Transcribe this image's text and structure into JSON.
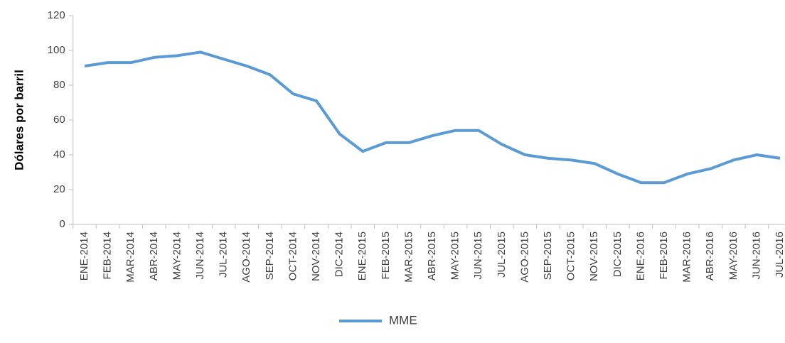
{
  "chart_data": {
    "type": "line",
    "y_label": "Dólares por barril",
    "categories": [
      "ENE-2014",
      "FEB-2014",
      "MAR-2014",
      "ABR-2014",
      "MAY-2014",
      "JUN-2014",
      "JUL-2014",
      "AGO-2014",
      "SEP-2014",
      "OCT-2014",
      "NOV-2014",
      "DIC-2014",
      "ENE-2015",
      "FEB-2015",
      "MAR-2015",
      "ABR-2015",
      "MAY-2015",
      "JUN-2015",
      "JUL-2015",
      "AGO-2015",
      "SEP-2015",
      "OCT-2015",
      "NOV-2015",
      "DIC-2015",
      "ENE-2016",
      "FEB-2016",
      "MAR-2016",
      "ABR-2016",
      "MAY-2016",
      "JUN-2016",
      "JUL-2016"
    ],
    "series": [
      {
        "name": "MME",
        "color": "#5b9bd5",
        "values": [
          91,
          93,
          93,
          96,
          97,
          99,
          95,
          91,
          86,
          75,
          71,
          52,
          42,
          47,
          47,
          51,
          54,
          54,
          46,
          40,
          38,
          37,
          35,
          29,
          24,
          24,
          29,
          32,
          37,
          40,
          38
        ]
      }
    ],
    "ylim": [
      0,
      120
    ],
    "yticks": [
      0,
      20,
      40,
      60,
      80,
      100,
      120
    ],
    "legend": "bottom"
  }
}
